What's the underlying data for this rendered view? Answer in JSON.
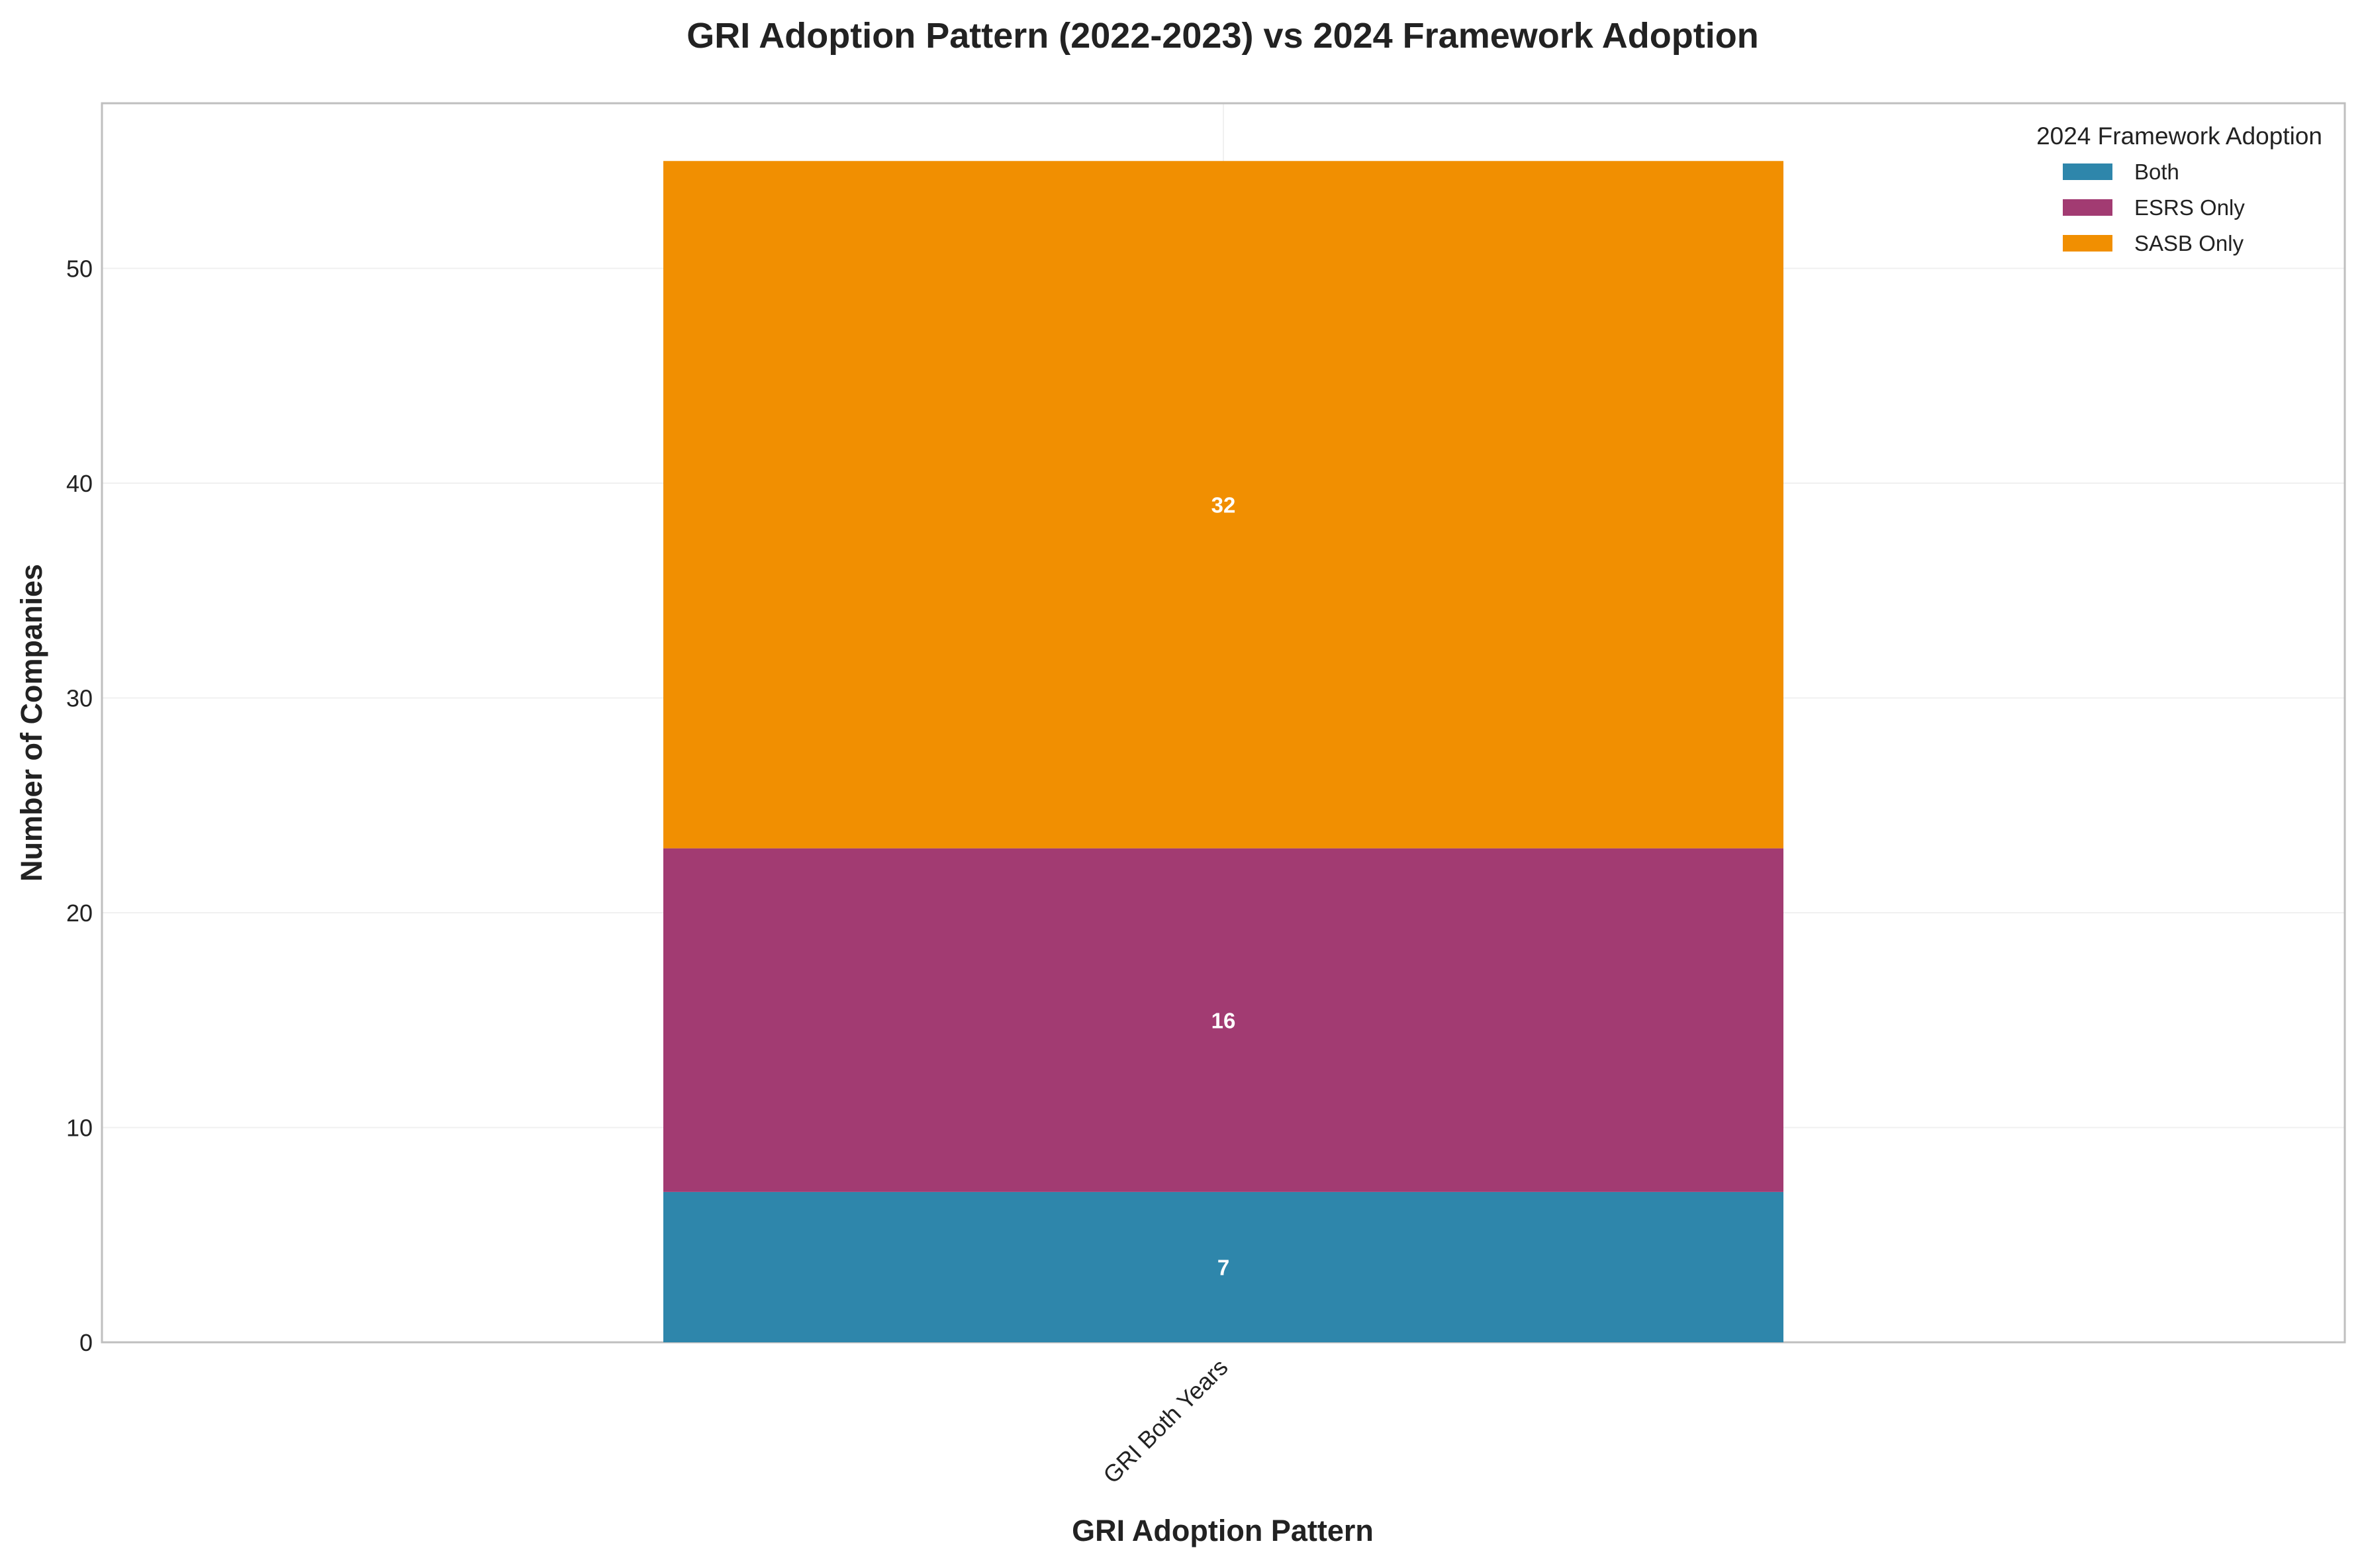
{
  "chart_data": {
    "type": "bar",
    "stacked": true,
    "title": "GRI Adoption Pattern (2022-2023) vs 2024 Framework Adoption",
    "xlabel": "GRI Adoption Pattern",
    "ylabel": "Number of Companies",
    "categories": [
      "GRI Both Years"
    ],
    "series": [
      {
        "name": "Both",
        "values": [
          7
        ],
        "color": "#2e86ab"
      },
      {
        "name": "ESRS Only",
        "values": [
          16
        ],
        "color": "#a23b72"
      },
      {
        "name": "SASB Only",
        "values": [
          32
        ],
        "color": "#f18f01"
      }
    ],
    "ylim": [
      0,
      58
    ],
    "yticks": [
      "0",
      "10",
      "20",
      "30",
      "40",
      "50"
    ],
    "grid": true,
    "legend": {
      "title": "2024 Framework Adoption",
      "placement": "top-right"
    }
  }
}
